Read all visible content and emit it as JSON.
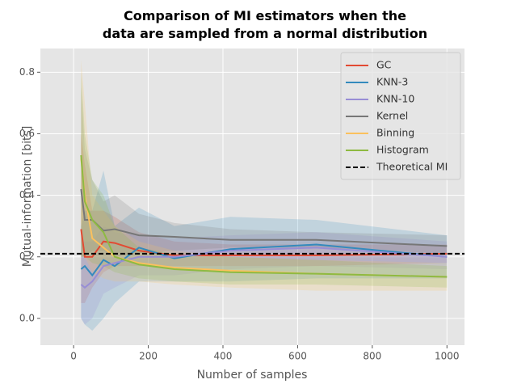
{
  "chart_data": {
    "type": "line",
    "title": "Comparison of MI estimators when the\ndata are sampled from a normal distribution",
    "xlabel": "Number of samples",
    "ylabel": "Mutual-information [bits]",
    "x": [
      20,
      30,
      50,
      80,
      110,
      175,
      270,
      420,
      650,
      1000
    ],
    "series": [
      {
        "name": "GC",
        "color": "#E24A33",
        "values": [
          0.29,
          0.2,
          0.2,
          0.25,
          0.245,
          0.22,
          0.205,
          0.205,
          0.205,
          0.21
        ],
        "lower": [
          0.05,
          0.05,
          0.1,
          0.15,
          0.17,
          0.17,
          0.17,
          0.17,
          0.17,
          0.18
        ],
        "upper": [
          0.6,
          0.5,
          0.35,
          0.35,
          0.33,
          0.28,
          0.25,
          0.24,
          0.24,
          0.24
        ]
      },
      {
        "name": "KNN-3",
        "color": "#348ABD",
        "values": [
          0.16,
          0.17,
          0.14,
          0.19,
          0.17,
          0.23,
          0.195,
          0.225,
          0.24,
          0.2
        ],
        "lower": [
          0.0,
          -0.02,
          -0.04,
          0.0,
          0.05,
          0.12,
          0.12,
          0.12,
          0.13,
          0.13
        ],
        "upper": [
          0.3,
          0.35,
          0.35,
          0.48,
          0.3,
          0.36,
          0.3,
          0.33,
          0.32,
          0.27
        ]
      },
      {
        "name": "KNN-10",
        "color": "#988ED5",
        "values": [
          0.11,
          0.1,
          0.12,
          0.17,
          0.18,
          0.2,
          0.2,
          0.22,
          0.23,
          0.2
        ],
        "lower": [
          0.0,
          -0.02,
          0.0,
          0.08,
          0.1,
          0.14,
          0.14,
          0.16,
          0.17,
          0.16
        ],
        "upper": [
          0.25,
          0.25,
          0.25,
          0.3,
          0.28,
          0.27,
          0.26,
          0.27,
          0.28,
          0.25
        ]
      },
      {
        "name": "Kernel",
        "color": "#777777",
        "values": [
          0.42,
          0.32,
          0.32,
          0.285,
          0.29,
          0.27,
          0.265,
          0.255,
          0.255,
          0.235
        ],
        "lower": [
          0.2,
          0.2,
          0.22,
          0.22,
          0.2,
          0.21,
          0.22,
          0.23,
          0.23,
          0.21
        ],
        "upper": [
          0.75,
          0.55,
          0.45,
          0.38,
          0.4,
          0.34,
          0.31,
          0.29,
          0.28,
          0.27
        ]
      },
      {
        "name": "Binning",
        "color": "#FBC15E",
        "values": [
          0.52,
          0.4,
          0.26,
          0.23,
          0.2,
          0.18,
          0.165,
          0.155,
          0.145,
          0.135
        ],
        "lower": [
          0.2,
          0.2,
          0.15,
          0.13,
          0.12,
          0.12,
          0.11,
          0.1,
          0.09,
          0.09
        ],
        "upper": [
          0.84,
          0.7,
          0.4,
          0.35,
          0.3,
          0.25,
          0.22,
          0.2,
          0.19,
          0.18
        ]
      },
      {
        "name": "Histogram",
        "color": "#8EBA42",
        "values": [
          0.53,
          0.38,
          0.32,
          0.28,
          0.2,
          0.175,
          0.16,
          0.15,
          0.145,
          0.135
        ],
        "lower": [
          0.2,
          0.2,
          0.18,
          0.17,
          0.15,
          0.13,
          0.12,
          0.11,
          0.11,
          0.1
        ],
        "upper": [
          0.8,
          0.6,
          0.45,
          0.4,
          0.3,
          0.23,
          0.21,
          0.2,
          0.19,
          0.17
        ]
      }
    ],
    "reference": {
      "name": "Theoretical MI",
      "value": 0.21,
      "color": "#000000"
    },
    "xlim": [
      -89,
      1047
    ],
    "ylim": [
      -0.087,
      0.877
    ],
    "xticks": [
      0,
      200,
      400,
      600,
      800,
      1000
    ],
    "yticks": [
      {
        "value": 0,
        "label": "0.0"
      },
      0.2,
      0.4,
      0.6,
      0.8
    ],
    "grid": true,
    "legend": "upper right"
  }
}
